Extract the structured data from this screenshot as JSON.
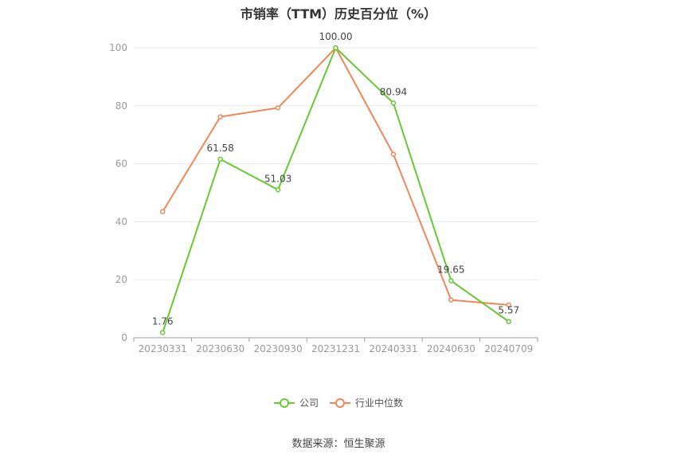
{
  "title": "市销率（TTM）历史百分位（%）",
  "source_label": "数据来源：恒生聚源",
  "colors": {
    "company": "#66c932",
    "industry": "#f0875a",
    "grid": "#e6e8ef",
    "axis_text": "#999999",
    "label_text": "#444444"
  },
  "chart_data": {
    "type": "line",
    "title": "市销率（TTM）历史百分位（%）",
    "xlabel": "",
    "ylabel": "",
    "ylim": [
      0,
      100
    ],
    "yticks": [
      0,
      20,
      40,
      60,
      80,
      100
    ],
    "grid": true,
    "legend_position": "bottom",
    "categories": [
      "20230331",
      "20230630",
      "20230930",
      "20231231",
      "20240331",
      "20240630",
      "20240709"
    ],
    "series": [
      {
        "name": "公司",
        "color": "#66c932",
        "values": [
          1.76,
          61.58,
          51.03,
          100.0,
          80.94,
          19.65,
          5.57
        ],
        "labels": [
          "1.76",
          "61.58",
          "51.03",
          "100.00",
          "80.94",
          "19.65",
          "5.57"
        ]
      },
      {
        "name": "行业中位数",
        "color": "#f0875a",
        "values": [
          43.5,
          76.2,
          79.3,
          100.0,
          63.3,
          13.0,
          11.3
        ]
      }
    ]
  }
}
